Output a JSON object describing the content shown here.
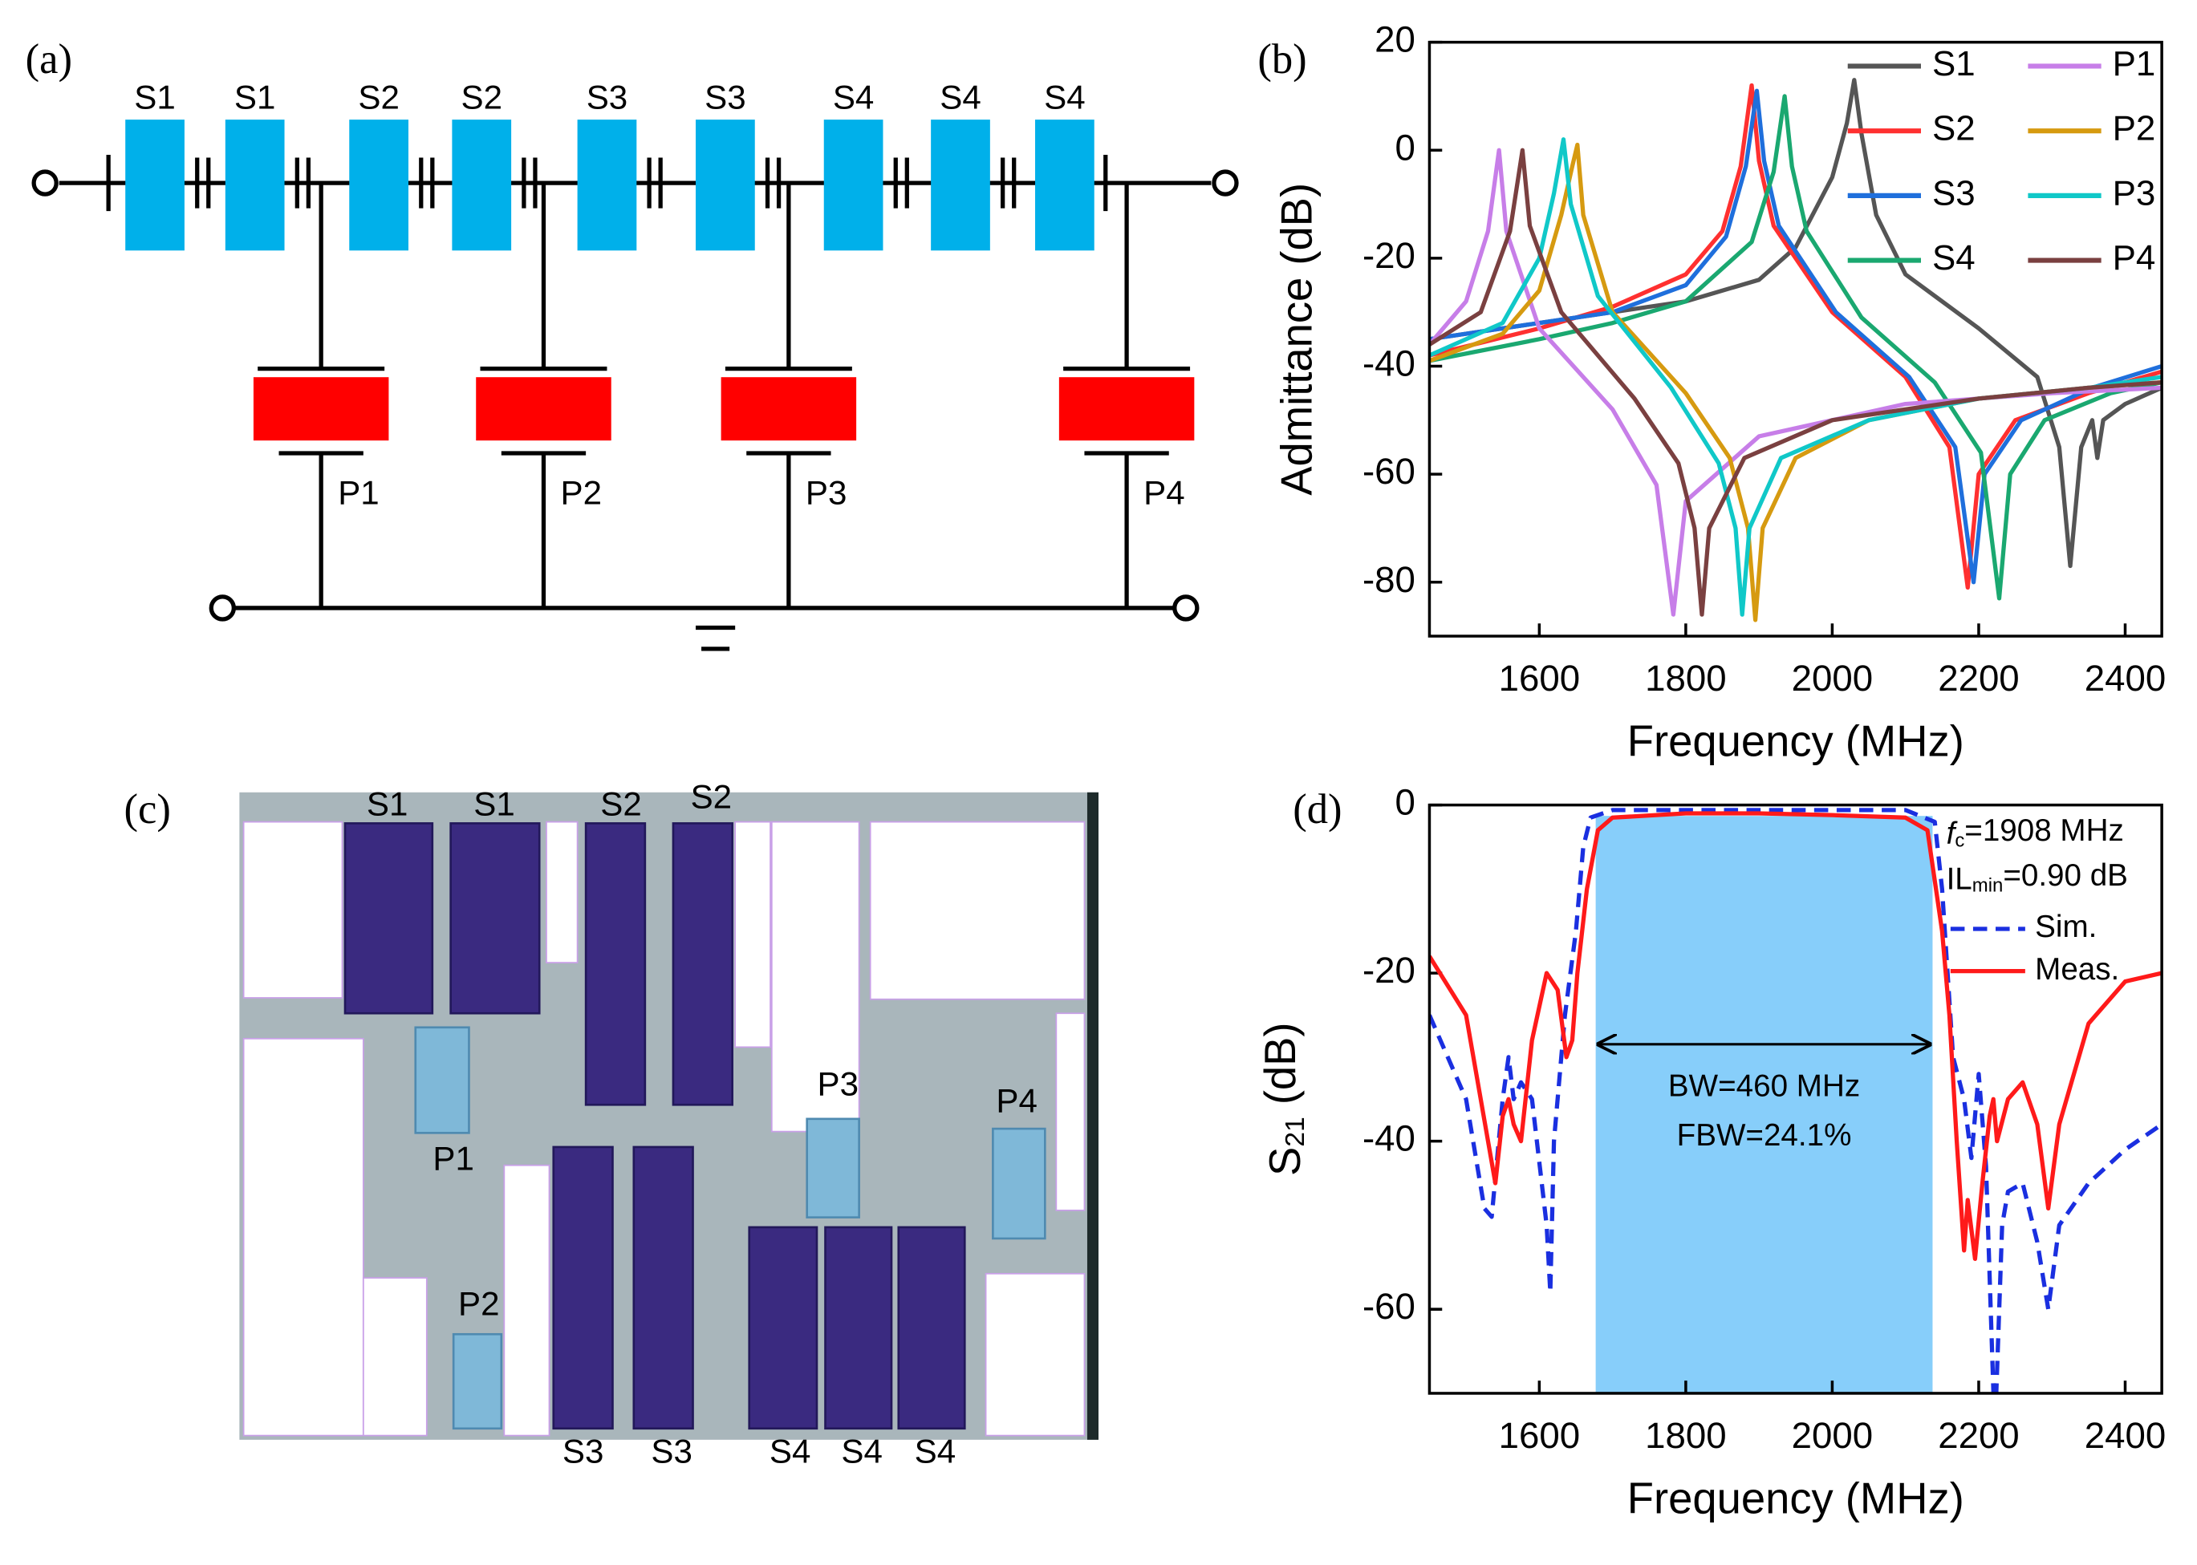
{
  "panel_labels": [
    "(a)",
    "(b)",
    "(c)",
    "(d)"
  ],
  "circuit": {
    "series_labels": [
      "S1",
      "S1",
      "S2",
      "S2",
      "S3",
      "S3",
      "S4",
      "S4",
      "S4"
    ],
    "shunt_labels": [
      "P1",
      "P2",
      "P3",
      "P4"
    ]
  },
  "photo": {
    "top_labels": [
      "S1",
      "S1",
      "S2",
      "S2"
    ],
    "shunt_labels": [
      "P1",
      "P2",
      "P3",
      "P4"
    ],
    "bottom_labels": [
      "S3",
      "S3",
      "S4",
      "S4",
      "S4"
    ]
  },
  "chart_data": [
    {
      "type": "line",
      "xlabel": "Frequency (MHz)",
      "ylabel": "Admittance (dB)",
      "xlim": [
        1450,
        2450
      ],
      "ylim": [
        -90,
        20
      ],
      "xticks": [
        1600,
        1800,
        2000,
        2200,
        2400
      ],
      "yticks": [
        -80,
        -60,
        -40,
        -20,
        0,
        20
      ],
      "legend": "top-right",
      "series": [
        {
          "name": "S1",
          "color": "#555555",
          "x": [
            1450,
            1600,
            1800,
            1900,
            1950,
            2000,
            2020,
            2030,
            2040,
            2060,
            2100,
            2200,
            2280,
            2310,
            2325,
            2340,
            2355,
            2362,
            2370,
            2400,
            2450
          ],
          "values": [
            -35,
            -32,
            -28,
            -24,
            -18,
            -5,
            5,
            13,
            3,
            -12,
            -23,
            -33,
            -42,
            -55,
            -77,
            -55,
            -50,
            -57,
            -50,
            -47,
            -44
          ]
        },
        {
          "name": "S2",
          "color": "#ff3030",
          "x": [
            1450,
            1600,
            1700,
            1800,
            1850,
            1875,
            1890,
            1900,
            1920,
            2000,
            2100,
            2160,
            2185,
            2200,
            2250,
            2350,
            2450
          ],
          "values": [
            -38,
            -33,
            -29,
            -23,
            -15,
            -3,
            12,
            -2,
            -14,
            -30,
            -42,
            -55,
            -81,
            -60,
            -50,
            -45,
            -41
          ]
        },
        {
          "name": "S3",
          "color": "#1f6fdc",
          "x": [
            1450,
            1600,
            1700,
            1800,
            1855,
            1882,
            1897,
            1907,
            1927,
            2005,
            2105,
            2168,
            2193,
            2208,
            2258,
            2355,
            2450
          ],
          "values": [
            -35,
            -32,
            -30,
            -25,
            -16,
            -3,
            11,
            -2,
            -14,
            -30,
            -42,
            -55,
            -80,
            -60,
            -50,
            -44,
            -40
          ]
        },
        {
          "name": "S4",
          "color": "#1aa870",
          "x": [
            1450,
            1600,
            1700,
            1800,
            1890,
            1920,
            1935,
            1945,
            1965,
            2040,
            2140,
            2203,
            2228,
            2243,
            2290,
            2380,
            2450
          ],
          "values": [
            -39,
            -35,
            -32,
            -28,
            -17,
            -4,
            10,
            -3,
            -15,
            -31,
            -43,
            -56,
            -83,
            -60,
            -50,
            -45,
            -43
          ]
        },
        {
          "name": "P1",
          "color": "#c77ee8",
          "x": [
            1450,
            1500,
            1530,
            1545,
            1555,
            1600,
            1700,
            1760,
            1783,
            1800,
            1900,
            2100,
            2300,
            2450
          ],
          "values": [
            -36,
            -28,
            -15,
            0,
            -15,
            -33,
            -48,
            -62,
            -86,
            -65,
            -53,
            -47,
            -45,
            -44
          ]
        },
        {
          "name": "P2",
          "color": "#d69a10",
          "x": [
            1450,
            1550,
            1600,
            1630,
            1645,
            1652,
            1660,
            1700,
            1800,
            1860,
            1885,
            1895,
            1905,
            1950,
            2050,
            2200,
            2350,
            2450
          ],
          "values": [
            -39,
            -34,
            -26,
            -12,
            -3,
            1,
            -12,
            -30,
            -45,
            -57,
            -70,
            -87,
            -70,
            -57,
            -50,
            -46,
            -44,
            -43
          ]
        },
        {
          "name": "P3",
          "color": "#10c8c8",
          "x": [
            1450,
            1550,
            1600,
            1620,
            1633,
            1643,
            1680,
            1780,
            1845,
            1868,
            1877,
            1887,
            1930,
            2050,
            2200,
            2350,
            2450
          ],
          "values": [
            -38,
            -32,
            -20,
            -8,
            2,
            -10,
            -27,
            -44,
            -58,
            -70,
            -86,
            -70,
            -57,
            -50,
            -46,
            -44,
            -42
          ]
        },
        {
          "name": "P4",
          "color": "#7a4040",
          "x": [
            1450,
            1520,
            1560,
            1577,
            1587,
            1630,
            1730,
            1790,
            1812,
            1822,
            1832,
            1880,
            2000,
            2200,
            2350,
            2450
          ],
          "values": [
            -36,
            -30,
            -15,
            0,
            -14,
            -30,
            -46,
            -58,
            -70,
            -86,
            -70,
            -57,
            -50,
            -46,
            -44,
            -43
          ]
        }
      ]
    },
    {
      "type": "line",
      "xlabel": "Frequency (MHz)",
      "ylabel": [
        "S",
        "21",
        " (dB)"
      ],
      "xlim": [
        1450,
        2450
      ],
      "ylim": [
        -70,
        0
      ],
      "xticks": [
        1600,
        1800,
        2000,
        2200,
        2400
      ],
      "yticks": [
        -60,
        -40,
        -20,
        0
      ],
      "legend": "top-right",
      "passband": {
        "x": [
          1677,
          2137
        ],
        "top": -1.3,
        "color": "#87cefa"
      },
      "annotations": {
        "fc": [
          "f",
          "c",
          "=1908 MHz"
        ],
        "il": [
          "IL",
          "min",
          "=0.90 dB"
        ],
        "bw": "BW=460 MHz",
        "fbw": "FBW=24.1%"
      },
      "series": [
        {
          "name": "Sim.",
          "color": "#1a2fe0",
          "dashed": true,
          "x": [
            1450,
            1500,
            1525,
            1535,
            1550,
            1558,
            1565,
            1575,
            1590,
            1610,
            1615,
            1620,
            1635,
            1650,
            1660,
            1670,
            1700,
            1900,
            2100,
            2140,
            2150,
            2165,
            2180,
            2190,
            2200,
            2210,
            2222,
            2232,
            2240,
            2260,
            2280,
            2295,
            2310,
            2350,
            2400,
            2450
          ],
          "values": [
            -25,
            -35,
            -48,
            -49,
            -35,
            -30,
            -35,
            -33,
            -35,
            -50,
            -58,
            -40,
            -25,
            -15,
            -5,
            -1.5,
            -0.6,
            -0.6,
            -0.6,
            -2,
            -10,
            -30,
            -35,
            -42,
            -32,
            -43,
            -75,
            -50,
            -46,
            -45,
            -52,
            -60,
            -50,
            -45,
            -41,
            -38
          ]
        },
        {
          "name": "Meas.",
          "color": "#ff1a1a",
          "x": [
            1450,
            1500,
            1530,
            1540,
            1550,
            1558,
            1565,
            1575,
            1590,
            1610,
            1625,
            1637,
            1645,
            1652,
            1665,
            1680,
            1700,
            1800,
            1900,
            2000,
            2100,
            2130,
            2150,
            2160,
            2170,
            2180,
            2185,
            2195,
            2205,
            2215,
            2220,
            2225,
            2240,
            2260,
            2280,
            2295,
            2310,
            2350,
            2400,
            2450
          ],
          "values": [
            -18,
            -25,
            -40,
            -45,
            -37,
            -35,
            -38,
            -40,
            -28,
            -20,
            -22,
            -30,
            -28,
            -20,
            -10,
            -3,
            -1.5,
            -1,
            -1,
            -1.2,
            -1.5,
            -3,
            -15,
            -25,
            -40,
            -53,
            -47,
            -54,
            -45,
            -37,
            -35,
            -40,
            -35,
            -33,
            -38,
            -48,
            -38,
            -26,
            -21,
            -20
          ]
        }
      ]
    }
  ]
}
